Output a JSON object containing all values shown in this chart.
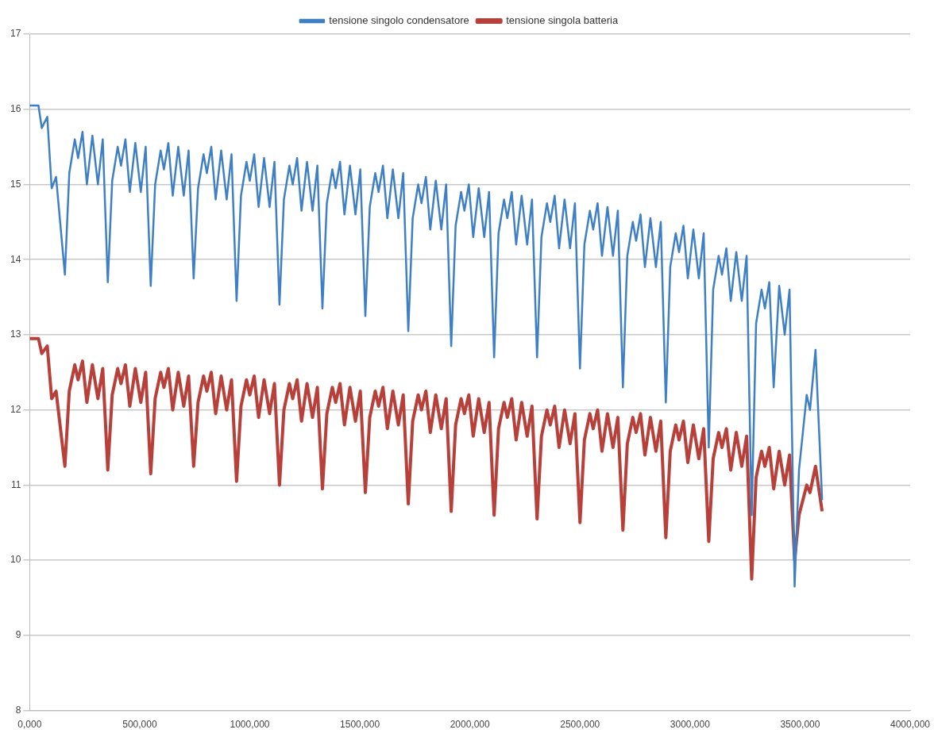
{
  "chart_data": {
    "type": "line",
    "legend": "top",
    "grid": "y",
    "xlim": [
      0,
      4000000
    ],
    "ylim": [
      8,
      17
    ],
    "xticks": [
      {
        "value": 0,
        "label": "0,000"
      },
      {
        "value": 500000,
        "label": "500,000"
      },
      {
        "value": 1000000,
        "label": "1000,000"
      },
      {
        "value": 1500000,
        "label": "1500,000"
      },
      {
        "value": 2000000,
        "label": "2000,000"
      },
      {
        "value": 2500000,
        "label": "2500,000"
      },
      {
        "value": 3000000,
        "label": "3000,000"
      },
      {
        "value": 3500000,
        "label": "3500,000"
      },
      {
        "value": 4000000,
        "label": "4000,000"
      }
    ],
    "yticks": [
      8,
      9,
      10,
      11,
      12,
      13,
      14,
      15,
      16,
      17
    ],
    "x": [
      0,
      40000,
      55000,
      80000,
      100000,
      120000,
      160000,
      180000,
      205000,
      220000,
      240000,
      260000,
      285000,
      310000,
      332000,
      355000,
      375000,
      400000,
      415000,
      435000,
      455000,
      480000,
      505000,
      527000,
      550000,
      570000,
      595000,
      610000,
      630000,
      650000,
      675000,
      700000,
      722000,
      745000,
      765000,
      790000,
      805000,
      825000,
      845000,
      870000,
      895000,
      917000,
      940000,
      960000,
      985000,
      1000000,
      1020000,
      1040000,
      1065000,
      1090000,
      1112000,
      1135000,
      1155000,
      1180000,
      1195000,
      1215000,
      1235000,
      1260000,
      1285000,
      1307000,
      1330000,
      1350000,
      1375000,
      1390000,
      1410000,
      1430000,
      1455000,
      1480000,
      1502000,
      1525000,
      1545000,
      1570000,
      1585000,
      1605000,
      1625000,
      1650000,
      1675000,
      1697000,
      1720000,
      1740000,
      1765000,
      1780000,
      1800000,
      1820000,
      1845000,
      1870000,
      1892000,
      1915000,
      1935000,
      1960000,
      1975000,
      1995000,
      2015000,
      2040000,
      2065000,
      2087000,
      2110000,
      2130000,
      2155000,
      2170000,
      2190000,
      2210000,
      2235000,
      2260000,
      2282000,
      2305000,
      2325000,
      2350000,
      2365000,
      2385000,
      2405000,
      2430000,
      2455000,
      2477000,
      2500000,
      2520000,
      2545000,
      2560000,
      2580000,
      2600000,
      2625000,
      2650000,
      2672000,
      2695000,
      2715000,
      2740000,
      2755000,
      2775000,
      2795000,
      2820000,
      2845000,
      2867000,
      2890000,
      2910000,
      2935000,
      2950000,
      2970000,
      2990000,
      3015000,
      3040000,
      3062000,
      3085000,
      3105000,
      3130000,
      3145000,
      3165000,
      3185000,
      3210000,
      3235000,
      3257000,
      3280000,
      3300000,
      3325000,
      3340000,
      3360000,
      3380000,
      3405000,
      3430000,
      3452000,
      3475000,
      3495000,
      3530000,
      3545000,
      3570000,
      3600000
    ],
    "series": [
      {
        "name": "tensione singolo condensatore",
        "color": "#3f7fc4",
        "values": [
          16.05,
          16.05,
          15.75,
          15.9,
          14.95,
          15.1,
          13.8,
          15.15,
          15.6,
          15.35,
          15.7,
          15.0,
          15.65,
          15.0,
          15.6,
          13.7,
          15.05,
          15.5,
          15.25,
          15.6,
          14.9,
          15.55,
          14.9,
          15.5,
          13.65,
          15.0,
          15.45,
          15.2,
          15.55,
          14.85,
          15.5,
          14.85,
          15.45,
          13.75,
          14.95,
          15.4,
          15.15,
          15.5,
          14.8,
          15.45,
          14.8,
          15.4,
          13.45,
          14.85,
          15.3,
          15.05,
          15.4,
          14.7,
          15.35,
          14.7,
          15.3,
          13.4,
          14.8,
          15.25,
          15.0,
          15.35,
          14.65,
          15.3,
          14.65,
          15.25,
          13.35,
          14.75,
          15.2,
          14.95,
          15.3,
          14.6,
          15.25,
          14.6,
          15.2,
          13.25,
          14.7,
          15.15,
          14.9,
          15.25,
          14.55,
          15.2,
          14.55,
          15.15,
          13.05,
          14.55,
          15.0,
          14.75,
          15.1,
          14.4,
          15.05,
          14.4,
          15.0,
          12.85,
          14.45,
          14.9,
          14.65,
          15.0,
          14.3,
          14.95,
          14.3,
          14.9,
          12.7,
          14.35,
          14.8,
          14.55,
          14.9,
          14.2,
          14.85,
          14.2,
          14.8,
          12.7,
          14.3,
          14.75,
          14.5,
          14.85,
          14.15,
          14.8,
          14.15,
          14.75,
          12.55,
          14.2,
          14.65,
          14.4,
          14.75,
          14.05,
          14.7,
          14.05,
          14.65,
          12.3,
          14.05,
          14.5,
          14.25,
          14.6,
          13.9,
          14.55,
          13.9,
          14.5,
          12.1,
          13.9,
          14.35,
          14.1,
          14.45,
          13.75,
          14.4,
          13.75,
          14.35,
          11.5,
          13.6,
          14.05,
          13.8,
          14.15,
          13.45,
          14.1,
          13.45,
          14.05,
          10.6,
          13.15,
          13.6,
          13.35,
          13.7,
          12.3,
          13.65,
          13.0,
          13.6,
          9.65,
          11.2,
          12.2,
          12.0,
          12.8,
          10.8
        ]
      },
      {
        "name": "tensione singola batteria",
        "color": "#b8403b",
        "values": [
          12.95,
          12.95,
          12.75,
          12.85,
          12.15,
          12.25,
          11.25,
          12.25,
          12.6,
          12.4,
          12.65,
          12.1,
          12.6,
          12.15,
          12.55,
          11.2,
          12.2,
          12.55,
          12.35,
          12.6,
          12.05,
          12.55,
          12.1,
          12.5,
          11.15,
          12.15,
          12.5,
          12.3,
          12.55,
          12.0,
          12.5,
          12.05,
          12.45,
          11.25,
          12.1,
          12.45,
          12.25,
          12.5,
          11.95,
          12.45,
          12.0,
          12.4,
          11.05,
          12.05,
          12.4,
          12.2,
          12.45,
          11.9,
          12.4,
          11.95,
          12.35,
          11.0,
          12.0,
          12.35,
          12.15,
          12.4,
          11.85,
          12.35,
          11.9,
          12.3,
          10.95,
          11.95,
          12.3,
          12.1,
          12.35,
          11.8,
          12.3,
          11.85,
          12.25,
          10.9,
          11.9,
          12.25,
          12.05,
          12.3,
          11.75,
          12.25,
          11.8,
          12.2,
          10.75,
          11.85,
          12.2,
          12.0,
          12.25,
          11.7,
          12.2,
          11.75,
          12.15,
          10.65,
          11.8,
          12.15,
          11.95,
          12.2,
          11.65,
          12.15,
          11.7,
          12.1,
          10.6,
          11.75,
          12.1,
          11.9,
          12.15,
          11.6,
          12.1,
          11.65,
          12.05,
          10.55,
          11.65,
          12.0,
          11.8,
          12.05,
          11.5,
          12.0,
          11.55,
          11.95,
          10.5,
          11.6,
          11.95,
          11.75,
          12.0,
          11.45,
          11.95,
          11.5,
          11.9,
          10.4,
          11.55,
          11.9,
          11.7,
          11.95,
          11.4,
          11.9,
          11.45,
          11.85,
          10.3,
          11.45,
          11.8,
          11.6,
          11.85,
          11.3,
          11.8,
          11.35,
          11.75,
          10.25,
          11.35,
          11.7,
          11.5,
          11.75,
          11.2,
          11.7,
          11.25,
          11.65,
          9.75,
          11.1,
          11.45,
          11.25,
          11.5,
          10.95,
          11.45,
          11.0,
          11.4,
          10.0,
          10.6,
          11.0,
          10.9,
          11.25,
          10.65
        ]
      }
    ]
  }
}
